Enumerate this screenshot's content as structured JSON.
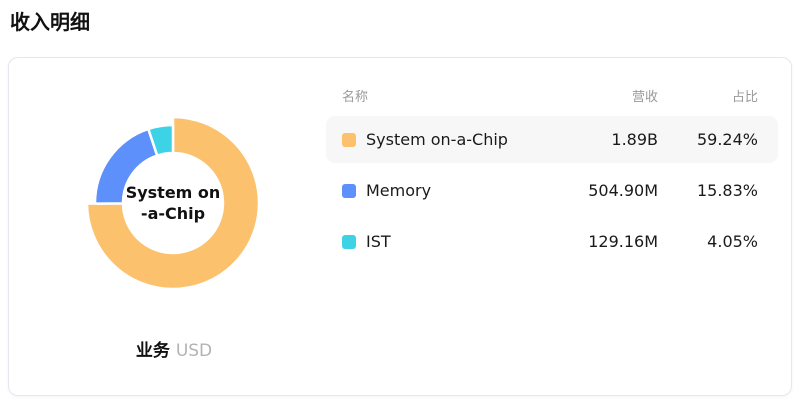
{
  "page_title": "收入明细",
  "card": {
    "chart": {
      "center_label_line1": "System on",
      "center_label_line2": "-a-Chip",
      "series_name": "业务",
      "series_unit": "USD"
    },
    "table": {
      "headers": {
        "name": "名称",
        "revenue": "营收",
        "share": "占比"
      },
      "rows": [
        {
          "name": "System on-a-Chip",
          "revenue": "1.89B",
          "share": "59.24%",
          "color": "#fbc16d",
          "highlighted": true
        },
        {
          "name": "Memory",
          "revenue": "504.90M",
          "share": "15.83%",
          "color": "#5e90fb",
          "highlighted": false
        },
        {
          "name": "IST",
          "revenue": "129.16M",
          "share": "4.05%",
          "color": "#3ed2e6",
          "highlighted": false
        }
      ]
    }
  },
  "chart_data": {
    "type": "pie",
    "donut": true,
    "title": "收入明细",
    "subtitle": "业务 USD",
    "categories": [
      "System on-a-Chip",
      "Memory",
      "IST"
    ],
    "series": [
      {
        "name": "营收",
        "values": [
          "1.89B",
          "504.90M",
          "129.16M"
        ]
      },
      {
        "name": "占比",
        "values": [
          59.24,
          15.83,
          4.05
        ]
      }
    ],
    "percent_values": [
      59.24,
      15.83,
      4.05
    ],
    "colors": [
      "#fbc16d",
      "#5e90fb",
      "#3ed2e6"
    ],
    "selected_category": "System on-a-Chip",
    "legend_position": "right"
  }
}
